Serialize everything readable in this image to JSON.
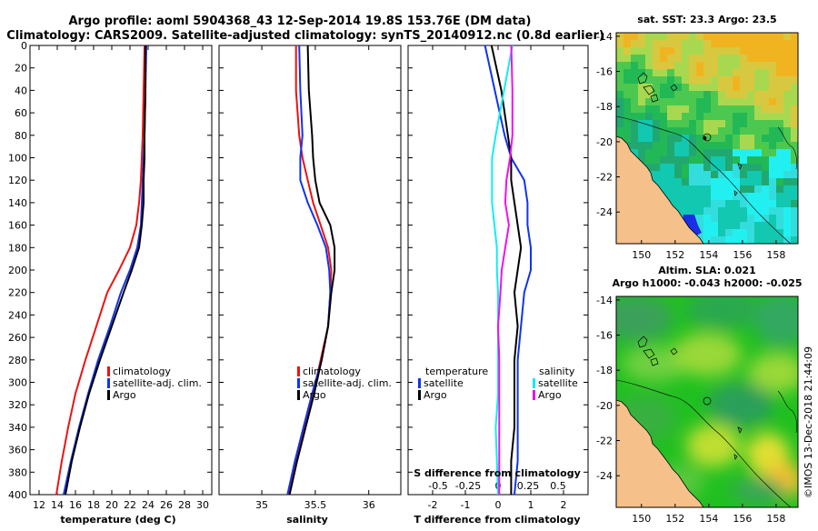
{
  "title": {
    "line1": "Argo profile: aoml 5904368_43 12-Sep-2014 19.8S 153.76E (DM data)",
    "line2": "Climatology: CARS2009. Satellite-adjusted climatology: synTS_20140912.nc (0.8d earlier)"
  },
  "colors": {
    "climatology": "#ee1111",
    "satellite": "#1133ee",
    "argo": "#000000",
    "s_climatology": "#ee11ee",
    "s_satellite": "#11eeee",
    "land": "#f5c08a"
  },
  "chart_data": [
    {
      "type": "line",
      "name": "temperature",
      "xlabel": "temperature (deg C)",
      "ylabel": "",
      "xlim": [
        11,
        31
      ],
      "ylim": [
        400,
        0
      ],
      "xticks": [
        12,
        14,
        16,
        18,
        20,
        22,
        24,
        26,
        28,
        30
      ],
      "yticks": [
        0,
        20,
        40,
        60,
        80,
        100,
        120,
        140,
        160,
        180,
        200,
        220,
        240,
        260,
        280,
        300,
        320,
        340,
        360,
        380,
        400
      ],
      "legend": [
        "climatology",
        "satellite-adj. clim.",
        "Argo"
      ],
      "series": [
        {
          "name": "climatology",
          "color": "#ee1111",
          "x": [
            23.6,
            23.5,
            23.4,
            23.3,
            23.2,
            23.0,
            22.7,
            22.0,
            20.8,
            19.5,
            18.3,
            17.1,
            16.0,
            15.2,
            14.5,
            13.9
          ],
          "y": [
            0,
            40,
            80,
            100,
            120,
            140,
            160,
            180,
            200,
            220,
            250,
            280,
            310,
            340,
            370,
            400
          ]
        },
        {
          "name": "satellite-adj. clim.",
          "color": "#1133ee",
          "x": [
            23.8,
            23.7,
            23.6,
            23.5,
            23.4,
            23.3,
            23.2,
            22.8,
            22.0,
            21.0,
            19.8,
            18.5,
            17.4,
            16.4,
            15.5,
            14.7
          ],
          "y": [
            0,
            40,
            80,
            100,
            120,
            140,
            160,
            180,
            200,
            220,
            250,
            280,
            310,
            340,
            370,
            400
          ]
        },
        {
          "name": "Argo",
          "color": "#000000",
          "x": [
            23.7,
            23.7,
            23.6,
            23.6,
            23.5,
            23.5,
            23.3,
            23.0,
            22.2,
            21.3,
            20.0,
            18.7,
            17.5,
            16.5,
            15.6,
            14.9
          ],
          "y": [
            0,
            40,
            80,
            100,
            120,
            140,
            160,
            180,
            200,
            220,
            250,
            280,
            310,
            340,
            370,
            400
          ]
        }
      ]
    },
    {
      "type": "line",
      "name": "salinity",
      "xlabel": "salinity",
      "xlim": [
        34.6,
        36.3
      ],
      "ylim": [
        400,
        0
      ],
      "xticks": [
        35,
        35.5,
        36
      ],
      "xticklabels": [
        "35",
        "35.5",
        "36"
      ],
      "legend": [
        "climatology",
        "satellite-adj. clim.",
        "Argo"
      ],
      "series": [
        {
          "name": "climatology",
          "color": "#ee1111",
          "x": [
            35.32,
            35.32,
            35.35,
            35.38,
            35.43,
            35.48,
            35.55,
            35.62,
            35.65,
            35.64,
            35.62,
            35.55,
            35.48,
            35.4,
            35.32,
            35.25
          ],
          "y": [
            0,
            40,
            80,
            100,
            120,
            140,
            160,
            180,
            200,
            220,
            250,
            280,
            310,
            340,
            370,
            400
          ]
        },
        {
          "name": "satellite-adj. clim.",
          "color": "#1133ee",
          "x": [
            35.35,
            35.36,
            35.38,
            35.36,
            35.36,
            35.43,
            35.52,
            35.6,
            35.63,
            35.64,
            35.62,
            35.56,
            35.47,
            35.39,
            35.31,
            35.24
          ],
          "y": [
            0,
            40,
            80,
            100,
            120,
            140,
            160,
            180,
            200,
            220,
            250,
            280,
            310,
            340,
            370,
            400
          ]
        },
        {
          "name": "Argo",
          "color": "#000000",
          "x": [
            35.43,
            35.44,
            35.47,
            35.48,
            35.5,
            35.54,
            35.64,
            35.68,
            35.68,
            35.65,
            35.62,
            35.56,
            35.49,
            35.41,
            35.33,
            35.26
          ],
          "y": [
            0,
            40,
            80,
            100,
            120,
            140,
            160,
            180,
            200,
            220,
            250,
            280,
            310,
            340,
            370,
            400
          ]
        }
      ]
    },
    {
      "type": "line",
      "name": "differences",
      "xlabel": "T difference from climatology",
      "xlim": [
        -2.75,
        2.75
      ],
      "ylim": [
        400,
        0
      ],
      "xticks": [
        -2,
        -1,
        0,
        1,
        2
      ],
      "xticklabels": [
        "-2",
        "-1",
        "0",
        "1",
        "2"
      ],
      "top_axis_label": "S difference from climatology",
      "top_ticks": [
        -0.5,
        -0.25,
        0,
        0.25,
        0.5
      ],
      "top_ticklabels": [
        "-0.5",
        "-0.25",
        "0",
        "0.25",
        "0.5"
      ],
      "legend_t": {
        "title": "temperature",
        "items": [
          "satellite",
          "Argo"
        ]
      },
      "legend_s": {
        "title": "salinity",
        "items": [
          "satellite",
          "Argo"
        ]
      },
      "series": [
        {
          "name": "T satellite",
          "color": "#1133ee",
          "x": [
            -0.4,
            -0.1,
            0.2,
            0.4,
            0.8,
            0.9,
            0.9,
            1.0,
            1.0,
            0.8,
            0.7,
            0.6,
            0.6,
            0.6,
            0.6,
            0.5
          ],
          "y": [
            0,
            40,
            80,
            100,
            120,
            140,
            160,
            180,
            200,
            220,
            250,
            280,
            310,
            340,
            370,
            400
          ]
        },
        {
          "name": "T Argo",
          "color": "#000000",
          "x": [
            -0.2,
            0.1,
            0.3,
            0.4,
            0.4,
            0.5,
            0.6,
            0.7,
            0.6,
            0.5,
            0.6,
            0.5,
            0.5,
            0.5,
            0.4,
            0.4
          ],
          "y": [
            0,
            40,
            80,
            100,
            120,
            140,
            160,
            180,
            200,
            220,
            250,
            280,
            310,
            340,
            370,
            400
          ]
        },
        {
          "name": "S satellite",
          "color": "#11eeee",
          "x": [
            0.12,
            0.05,
            -0.02,
            -0.05,
            -0.05,
            -0.05,
            -0.03,
            -0.01,
            -0.01,
            0.0,
            0.0,
            0.0,
            0.0,
            -0.02,
            -0.01,
            0.0
          ],
          "y": [
            0,
            40,
            80,
            100,
            120,
            140,
            160,
            180,
            200,
            220,
            250,
            280,
            310,
            340,
            370,
            400
          ]
        },
        {
          "name": "S Argo",
          "color": "#ee11ee",
          "x": [
            0.11,
            0.12,
            0.12,
            0.1,
            0.07,
            0.06,
            0.09,
            0.06,
            0.03,
            0.02,
            0.0,
            0.01,
            0.01,
            0.01,
            0.01,
            0.01
          ],
          "y": [
            0,
            40,
            80,
            100,
            120,
            140,
            160,
            180,
            200,
            220,
            250,
            280,
            310,
            340,
            370,
            400
          ]
        }
      ]
    },
    {
      "type": "heatmap",
      "name": "sst-map",
      "title": "sat. SST: 23.3 Argo: 23.5",
      "xlim": [
        148.5,
        159.3
      ],
      "ylim": [
        -25.8,
        -13.8
      ],
      "xticks": [
        150,
        152,
        154,
        156,
        158
      ],
      "yticks": [
        -14,
        -16,
        -18,
        -20,
        -22,
        -24
      ],
      "argo_position": {
        "lon": 153.76,
        "lat": -19.8
      }
    },
    {
      "type": "heatmap",
      "name": "sla-map",
      "title_line1": "Altim. SLA: 0.021",
      "title_line2": "Argo h1000: -0.043 h2000: -0.025",
      "xlim": [
        148.5,
        159.3
      ],
      "ylim": [
        -25.8,
        -13.8
      ],
      "xticks": [
        150,
        152,
        154,
        156,
        158
      ],
      "yticks": [
        -14,
        -16,
        -18,
        -20,
        -22,
        -24
      ]
    }
  ],
  "credit": "©IMOS 13-Dec-2018 21:44:09"
}
